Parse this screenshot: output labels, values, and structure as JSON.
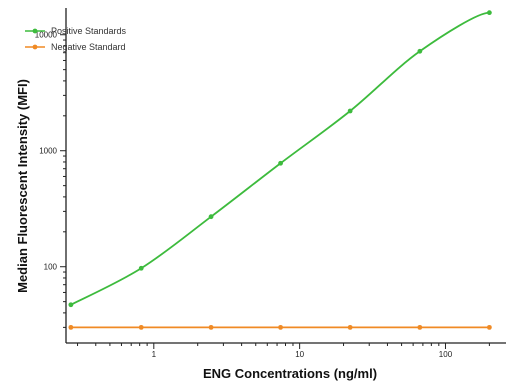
{
  "chart_data": {
    "type": "line",
    "title": "",
    "xlabel": "ENG Concentrations (ng/ml)",
    "ylabel": "Median  Fluorescent Intensity  (MFI)",
    "x_scale": "log",
    "y_scale": "log",
    "xlim": [
      0.25,
      260
    ],
    "ylim": [
      22,
      17000
    ],
    "x_ticks": [
      1,
      10,
      100
    ],
    "x_tick_labels": [
      "1",
      "10",
      "100"
    ],
    "y_ticks": [
      100,
      1000,
      10000
    ],
    "y_tick_labels": [
      "100",
      "1000",
      "10000"
    ],
    "grid": false,
    "legend_position": "top-left",
    "series": [
      {
        "name": "Positive Standards",
        "color": "#3dbb3d",
        "marker": "circle",
        "curve": "smooth",
        "x": [
          0.27,
          0.82,
          2.47,
          7.4,
          22.2,
          66.7,
          200
        ],
        "y": [
          47,
          97,
          270,
          780,
          2200,
          7200,
          15500
        ]
      },
      {
        "name": "Negative Standard",
        "color": "#f08a24",
        "marker": "circle",
        "curve": "straight",
        "x": [
          0.27,
          0.82,
          2.47,
          7.4,
          22.2,
          66.7,
          200
        ],
        "y": [
          30,
          30,
          30,
          30,
          30,
          30,
          30
        ]
      }
    ]
  }
}
